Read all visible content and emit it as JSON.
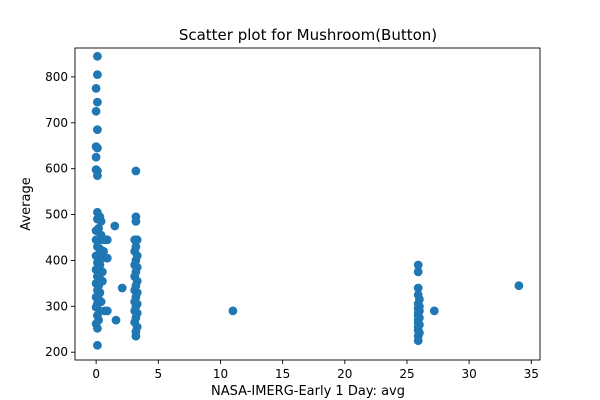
{
  "chart_data": {
    "type": "scatter",
    "title": "Scatter plot for Mushroom(Button)",
    "xlabel": "NASA-IMERG-Early 1 Day: avg",
    "ylabel": "Average",
    "xlim": [
      -1.7,
      35.7
    ],
    "ylim": [
      183,
      863
    ],
    "xticks": [
      0,
      5,
      10,
      15,
      20,
      25,
      30,
      35
    ],
    "yticks": [
      200,
      300,
      400,
      500,
      600,
      700,
      800
    ],
    "grid": false,
    "legend": "none",
    "point_color": "#1f77b4",
    "points": [
      [
        0.1,
        845
      ],
      [
        0.1,
        805
      ],
      [
        0.0,
        775
      ],
      [
        0.1,
        745
      ],
      [
        0.0,
        725
      ],
      [
        0.1,
        685
      ],
      [
        0.0,
        648
      ],
      [
        0.1,
        645
      ],
      [
        0.0,
        625
      ],
      [
        0.0,
        598
      ],
      [
        0.1,
        595
      ],
      [
        0.1,
        585
      ],
      [
        0.1,
        505
      ],
      [
        0.3,
        495
      ],
      [
        0.1,
        490
      ],
      [
        0.4,
        485
      ],
      [
        0.2,
        470
      ],
      [
        0.0,
        465
      ],
      [
        0.4,
        455
      ],
      [
        0.0,
        445
      ],
      [
        0.2,
        445
      ],
      [
        0.5,
        445
      ],
      [
        0.7,
        445
      ],
      [
        0.9,
        445
      ],
      [
        0.1,
        430
      ],
      [
        0.3,
        425
      ],
      [
        0.6,
        420
      ],
      [
        0.0,
        410
      ],
      [
        0.2,
        405
      ],
      [
        0.5,
        405
      ],
      [
        0.9,
        405
      ],
      [
        0.1,
        395
      ],
      [
        0.3,
        390
      ],
      [
        0.0,
        380
      ],
      [
        0.2,
        378
      ],
      [
        0.5,
        375
      ],
      [
        0.1,
        365
      ],
      [
        0.3,
        360
      ],
      [
        0.0,
        350
      ],
      [
        0.2,
        345
      ],
      [
        0.5,
        355
      ],
      [
        0.1,
        335
      ],
      [
        0.3,
        330
      ],
      [
        0.0,
        320
      ],
      [
        0.2,
        315
      ],
      [
        0.4,
        310
      ],
      [
        0.1,
        305
      ],
      [
        0.0,
        298
      ],
      [
        0.3,
        290
      ],
      [
        0.7,
        290
      ],
      [
        0.9,
        290
      ],
      [
        0.1,
        280
      ],
      [
        0.2,
        270
      ],
      [
        0.0,
        262
      ],
      [
        0.1,
        252
      ],
      [
        0.1,
        215
      ],
      [
        1.5,
        475
      ],
      [
        2.1,
        340
      ],
      [
        1.6,
        270
      ],
      [
        3.2,
        595
      ],
      [
        3.2,
        495
      ],
      [
        3.2,
        485
      ],
      [
        3.1,
        445
      ],
      [
        3.3,
        445
      ],
      [
        3.2,
        430
      ],
      [
        3.1,
        420
      ],
      [
        3.3,
        410
      ],
      [
        3.2,
        400
      ],
      [
        3.1,
        390
      ],
      [
        3.3,
        385
      ],
      [
        3.2,
        375
      ],
      [
        3.1,
        365
      ],
      [
        3.3,
        355
      ],
      [
        3.2,
        345
      ],
      [
        3.1,
        335
      ],
      [
        3.3,
        330
      ],
      [
        3.2,
        320
      ],
      [
        3.1,
        310
      ],
      [
        3.3,
        305
      ],
      [
        3.2,
        300
      ],
      [
        3.1,
        290
      ],
      [
        3.3,
        285
      ],
      [
        3.2,
        275
      ],
      [
        3.1,
        265
      ],
      [
        3.3,
        255
      ],
      [
        3.2,
        245
      ],
      [
        3.2,
        235
      ],
      [
        11.0,
        290
      ],
      [
        25.9,
        390
      ],
      [
        25.9,
        375
      ],
      [
        25.9,
        340
      ],
      [
        25.9,
        325
      ],
      [
        26.0,
        315
      ],
      [
        25.9,
        305
      ],
      [
        26.0,
        300
      ],
      [
        25.9,
        295
      ],
      [
        26.0,
        290
      ],
      [
        25.9,
        285
      ],
      [
        25.9,
        280
      ],
      [
        26.0,
        275
      ],
      [
        25.9,
        270
      ],
      [
        25.9,
        265
      ],
      [
        26.0,
        260
      ],
      [
        25.9,
        255
      ],
      [
        25.9,
        248
      ],
      [
        26.0,
        242
      ],
      [
        25.9,
        235
      ],
      [
        25.9,
        225
      ],
      [
        27.2,
        290
      ],
      [
        34.0,
        345
      ]
    ]
  }
}
